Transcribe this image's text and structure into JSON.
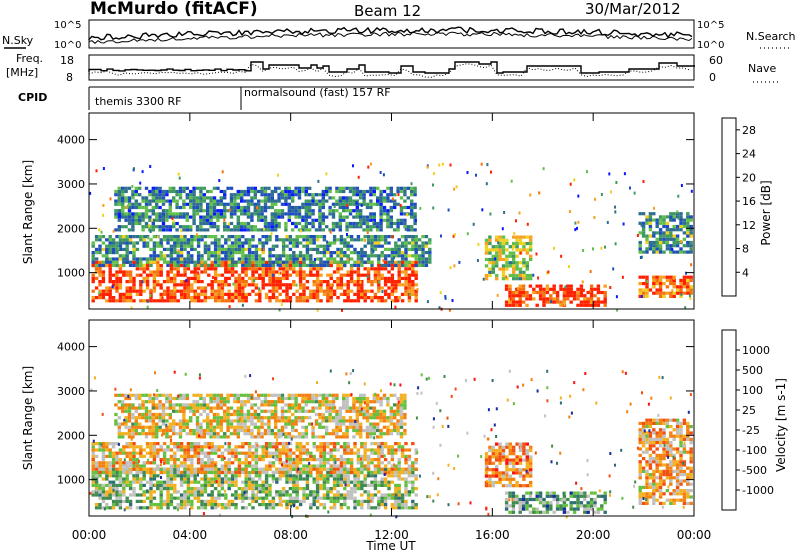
{
  "header": {
    "station": "McMurdo (fitACF)",
    "beam": "Beam 12",
    "date": "30/Mar/2012"
  },
  "top_panel": {
    "left_label": "N.Sky",
    "right_label": "N.Search",
    "left_ticks": [
      "10^5",
      "10^0"
    ],
    "right_ticks": [
      "10^5",
      "10^0"
    ]
  },
  "freq_panel": {
    "left_label_1": "Freq.",
    "left_label_2": "[MHz]",
    "left_ticks": [
      "18",
      "8"
    ],
    "right_ticks": [
      "60",
      "0"
    ],
    "right_label": "Nave"
  },
  "cpid_panel": {
    "label": "CPID",
    "programs": [
      "themis 3300 RF",
      "normalsound (fast) 157 RF"
    ]
  },
  "chart_data": [
    {
      "type": "heatmap",
      "title": "",
      "xlabel": "",
      "ylabel": "Slant Range [km]",
      "x_ticks": [
        "00:00",
        "04:00",
        "08:00",
        "12:00",
        "16:00",
        "20:00",
        "00:00"
      ],
      "y_ticks": [
        "1000",
        "2000",
        "3000",
        "4000"
      ],
      "xlim_hours": [
        0,
        24
      ],
      "ylim_km": [
        180,
        4600
      ],
      "colorbar": {
        "label": "Power [dB]",
        "ticks": [
          "4",
          "8",
          "12",
          "16",
          "20",
          "24",
          "28"
        ],
        "range": [
          0,
          30
        ],
        "colors": [
          "#0a1aff",
          "#1f4fbf",
          "#2e6e8e",
          "#3f9a60",
          "#62c04a",
          "#f0d020",
          "#f8a020",
          "#f77010",
          "#ff2000"
        ]
      },
      "regions": [
        {
          "t0": 0.1,
          "t1": 13.0,
          "r0": 400,
          "r1": 1300,
          "level": 0.9
        },
        {
          "t0": 0.1,
          "t1": 13.5,
          "r0": 1200,
          "r1": 1900,
          "level": 0.35
        },
        {
          "t0": 1.0,
          "t1": 13.0,
          "r0": 2000,
          "r1": 3000,
          "level": 0.3
        },
        {
          "t0": 15.7,
          "t1": 17.5,
          "r0": 900,
          "r1": 1900,
          "level": 0.55
        },
        {
          "t0": 16.5,
          "t1": 20.5,
          "r0": 300,
          "r1": 800,
          "level": 0.95
        },
        {
          "t0": 21.8,
          "t1": 23.9,
          "r0": 1500,
          "r1": 2400,
          "level": 0.35
        },
        {
          "t0": 21.8,
          "t1": 23.9,
          "r0": 500,
          "r1": 1000,
          "level": 0.85
        }
      ]
    },
    {
      "type": "heatmap",
      "title": "",
      "xlabel": "Time UT",
      "ylabel": "Slant Range [km]",
      "x_ticks": [
        "00:00",
        "04:00",
        "08:00",
        "12:00",
        "16:00",
        "20:00",
        "00:00"
      ],
      "y_ticks": [
        "1000",
        "2000",
        "3000",
        "4000"
      ],
      "xlim_hours": [
        0,
        24
      ],
      "ylim_km": [
        180,
        4600
      ],
      "colorbar": {
        "label": "Velocity [m s-1]",
        "ticks": [
          "1000",
          "500",
          "100",
          "25",
          "-25",
          "-100",
          "-500",
          "-1000"
        ],
        "colors": [
          "#1a2aa0",
          "#2c6e74",
          "#3f8a50",
          "#66c040",
          "#c0c0c0",
          "#f3b020",
          "#f38010",
          "#f25010",
          "#ff1010"
        ]
      },
      "regions": [
        {
          "t0": 0.1,
          "t1": 13.0,
          "r0": 400,
          "r1": 1300,
          "level": 0.42
        },
        {
          "t0": 0.1,
          "t1": 13.0,
          "r0": 1200,
          "r1": 1900,
          "level": 0.6
        },
        {
          "t0": 1.0,
          "t1": 12.5,
          "r0": 2000,
          "r1": 3000,
          "level": 0.55
        },
        {
          "t0": 15.7,
          "t1": 17.5,
          "r0": 900,
          "r1": 1900,
          "level": 0.7
        },
        {
          "t0": 16.5,
          "t1": 20.5,
          "r0": 300,
          "r1": 800,
          "level": 0.3
        },
        {
          "t0": 21.8,
          "t1": 23.9,
          "r0": 500,
          "r1": 2400,
          "level": 0.65
        }
      ]
    }
  ]
}
